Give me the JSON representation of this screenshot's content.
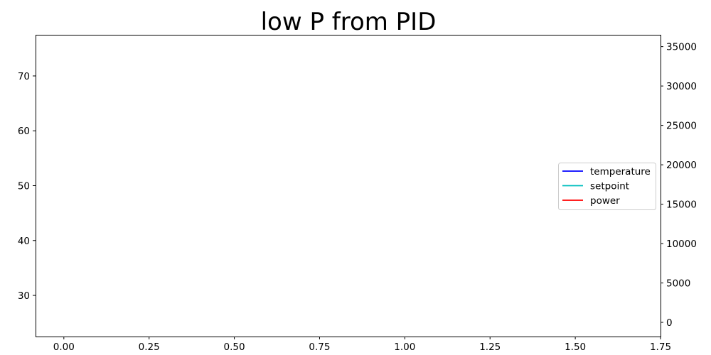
{
  "chart_data": {
    "type": "line",
    "title": "low P from PID",
    "xlabel": "",
    "ylabel": "",
    "y2label": "",
    "xlim": [
      -0.083,
      1.75
    ],
    "ylim": [
      22.5,
      77.5
    ],
    "y2lim": [
      -1800,
      36500
    ],
    "x_ticks": [
      "0.00",
      "0.25",
      "0.50",
      "0.75",
      "1.00",
      "1.25",
      "1.50",
      "1.75"
    ],
    "y_ticks": [
      "30",
      "40",
      "50",
      "60",
      "70"
    ],
    "y2_ticks": [
      "0",
      "5000",
      "10000",
      "15000",
      "20000",
      "25000",
      "30000",
      "35000"
    ],
    "grid": false,
    "legend_position": "center-right",
    "series": [
      {
        "name": "temperature",
        "color": "#0000ff",
        "axis": "left",
        "x": [],
        "y": []
      },
      {
        "name": "setpoint",
        "color": "#00bfbf",
        "axis": "left",
        "x": [],
        "y": []
      },
      {
        "name": "power",
        "color": "#ff0000",
        "axis": "right",
        "x": [],
        "y": []
      }
    ]
  }
}
